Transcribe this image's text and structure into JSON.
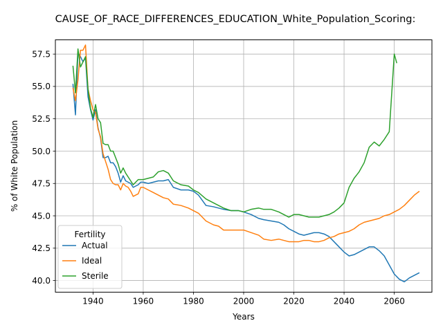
{
  "chart_data": {
    "type": "line",
    "title": "CAUSE_OF_RACE_DIFFERENCES_EDUCATION_White_Population_Scoring:",
    "xlabel": "Years",
    "ylabel": "% of White Population",
    "xlim": [
      1925,
      2075
    ],
    "ylim": [
      39.1,
      58.6
    ],
    "x_ticks": [
      1940,
      1960,
      1980,
      2000,
      2020,
      2040,
      2060
    ],
    "y_ticks": [
      40.0,
      42.5,
      45.0,
      47.5,
      50.0,
      52.5,
      55.0,
      57.5
    ],
    "grid": true,
    "legend": {
      "title": "Fertility",
      "placement": "lower-left"
    },
    "series": [
      {
        "name": "Actual",
        "color": "#1f77b4",
        "x": [
          1932,
          1933,
          1934,
          1935,
          1936,
          1937,
          1938,
          1939,
          1940,
          1941,
          1942,
          1943,
          1944,
          1945,
          1946,
          1947,
          1948,
          1949,
          1950,
          1951,
          1952,
          1953,
          1954,
          1955,
          1956,
          1957,
          1958,
          1959,
          1960,
          1962,
          1964,
          1966,
          1968,
          1970,
          1972,
          1975,
          1978,
          1980,
          1982,
          1985,
          1988,
          1990,
          1992,
          1995,
          1998,
          2000,
          2003,
          2006,
          2008,
          2011,
          2014,
          2016,
          2018,
          2020,
          2022,
          2024,
          2026,
          2028,
          2030,
          2032,
          2034,
          2036,
          2038,
          2040,
          2042,
          2044,
          2046,
          2048,
          2050,
          2052,
          2054,
          2056,
          2058,
          2060,
          2062,
          2064,
          2066,
          2068,
          2070
        ],
        "values": [
          55.2,
          52.8,
          57.6,
          57.3,
          56.9,
          57.2,
          54.2,
          53.2,
          52.4,
          53.2,
          51.8,
          51.0,
          49.5,
          49.5,
          49.6,
          49.1,
          49.1,
          48.8,
          48.3,
          47.6,
          48.1,
          47.7,
          47.6,
          47.5,
          47.2,
          47.3,
          47.4,
          47.6,
          47.6,
          47.5,
          47.6,
          47.7,
          47.7,
          47.8,
          47.2,
          47.0,
          47.0,
          46.9,
          46.6,
          45.8,
          45.7,
          45.6,
          45.5,
          45.4,
          45.4,
          45.3,
          45.1,
          44.8,
          44.7,
          44.6,
          44.5,
          44.3,
          44.0,
          43.8,
          43.6,
          43.5,
          43.6,
          43.7,
          43.7,
          43.6,
          43.4,
          43.0,
          42.6,
          42.2,
          41.9,
          42.0,
          42.2,
          42.4,
          42.6,
          42.6,
          42.3,
          41.9,
          41.2,
          40.5,
          40.1,
          39.9,
          40.2,
          40.4,
          40.6
        ]
      },
      {
        "name": "Ideal",
        "color": "#ff7f0e",
        "x": [
          1932,
          1933,
          1934,
          1935,
          1936,
          1937,
          1938,
          1939,
          1940,
          1941,
          1942,
          1943,
          1944,
          1945,
          1946,
          1947,
          1948,
          1949,
          1950,
          1951,
          1952,
          1953,
          1954,
          1955,
          1956,
          1957,
          1958,
          1959,
          1960,
          1962,
          1964,
          1966,
          1968,
          1970,
          1972,
          1975,
          1978,
          1980,
          1982,
          1985,
          1988,
          1990,
          1992,
          1995,
          1998,
          2000,
          2003,
          2006,
          2008,
          2011,
          2014,
          2016,
          2018,
          2020,
          2022,
          2024,
          2026,
          2028,
          2030,
          2032,
          2034,
          2036,
          2038,
          2040,
          2042,
          2044,
          2046,
          2048,
          2050,
          2052,
          2054,
          2056,
          2058,
          2060,
          2062,
          2064,
          2066,
          2068,
          2070
        ],
        "values": [
          54.9,
          53.9,
          55.5,
          57.8,
          57.8,
          58.2,
          54.8,
          53.9,
          53.2,
          53.0,
          51.7,
          51.1,
          49.8,
          49.2,
          48.6,
          47.8,
          47.5,
          47.4,
          47.4,
          47.0,
          47.5,
          47.3,
          47.2,
          46.9,
          46.5,
          46.6,
          46.7,
          47.2,
          47.2,
          47.0,
          46.8,
          46.6,
          46.4,
          46.3,
          45.9,
          45.8,
          45.6,
          45.4,
          45.2,
          44.6,
          44.3,
          44.2,
          43.9,
          43.9,
          43.9,
          43.9,
          43.7,
          43.5,
          43.2,
          43.1,
          43.2,
          43.1,
          43.0,
          43.0,
          43.0,
          43.1,
          43.1,
          43.0,
          43.0,
          43.1,
          43.3,
          43.4,
          43.6,
          43.7,
          43.8,
          44.0,
          44.3,
          44.5,
          44.6,
          44.7,
          44.8,
          45.0,
          45.1,
          45.3,
          45.5,
          45.8,
          46.2,
          46.6,
          46.9
        ]
      },
      {
        "name": "Sterile",
        "color": "#2ca02c",
        "x": [
          1932,
          1933,
          1934,
          1935,
          1936,
          1937,
          1938,
          1939,
          1940,
          1941,
          1942,
          1943,
          1944,
          1945,
          1946,
          1947,
          1948,
          1949,
          1950,
          1951,
          1952,
          1953,
          1954,
          1955,
          1956,
          1957,
          1958,
          1959,
          1960,
          1962,
          1964,
          1966,
          1968,
          1970,
          1972,
          1975,
          1978,
          1980,
          1982,
          1985,
          1988,
          1990,
          1992,
          1995,
          1998,
          2000,
          2003,
          2006,
          2008,
          2011,
          2014,
          2016,
          2018,
          2020,
          2022,
          2024,
          2026,
          2028,
          2030,
          2032,
          2034,
          2036,
          2038,
          2040,
          2042,
          2044,
          2046,
          2048,
          2050,
          2052,
          2054,
          2056,
          2058,
          2060,
          2061
        ],
        "values": [
          56.6,
          54.5,
          57.9,
          56.5,
          56.9,
          57.3,
          54.8,
          53.3,
          52.6,
          53.6,
          52.5,
          52.2,
          50.6,
          50.5,
          50.5,
          50.0,
          50.0,
          49.5,
          49.0,
          48.3,
          48.7,
          48.3,
          48.0,
          47.7,
          47.4,
          47.6,
          47.8,
          47.8,
          47.8,
          47.9,
          48.0,
          48.4,
          48.5,
          48.3,
          47.7,
          47.4,
          47.3,
          47.0,
          46.8,
          46.3,
          46.0,
          45.8,
          45.6,
          45.4,
          45.4,
          45.3,
          45.5,
          45.6,
          45.5,
          45.5,
          45.3,
          45.1,
          44.9,
          45.1,
          45.1,
          45.0,
          44.9,
          44.9,
          44.9,
          45.0,
          45.1,
          45.3,
          45.6,
          46.0,
          47.2,
          47.9,
          48.4,
          49.1,
          50.3,
          50.7,
          50.4,
          50.9,
          51.5,
          57.5,
          56.8
        ]
      }
    ]
  }
}
